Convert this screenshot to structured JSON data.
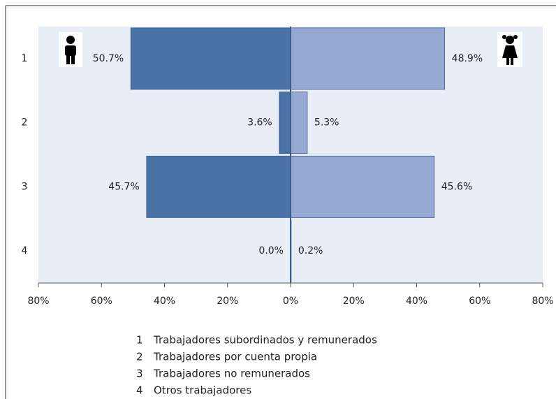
{
  "chart_data": {
    "type": "butterfly",
    "categories": [
      "1",
      "2",
      "3",
      "4"
    ],
    "series": [
      {
        "color": "#4a72a6",
        "values": [
          50.7,
          3.6,
          45.7,
          0.0
        ],
        "value_labels": [
          "50.7%",
          "3.6%",
          "45.7%",
          "0.0%"
        ]
      },
      {
        "color": "#95a9d2",
        "values": [
          48.9,
          5.3,
          45.6,
          0.2
        ],
        "value_labels": [
          "48.9%",
          "5.3%",
          "45.6%",
          "0.2%"
        ]
      }
    ],
    "xlim": [
      -80,
      80
    ],
    "xticks": [
      {
        "value": -80,
        "label": "80%"
      },
      {
        "value": -60,
        "label": "60%"
      },
      {
        "value": -40,
        "label": "40%"
      },
      {
        "value": -20,
        "label": "20%"
      },
      {
        "value": 0,
        "label": "0%"
      },
      {
        "value": 20,
        "label": "20%"
      },
      {
        "value": 40,
        "label": "40%"
      },
      {
        "value": 60,
        "label": "60%"
      },
      {
        "value": 80,
        "label": "80%"
      }
    ],
    "legend": [
      {
        "key": "1",
        "label": "Trabajadores subordinados y remunerados"
      },
      {
        "key": "2",
        "label": "Trabajadores por cuenta propia"
      },
      {
        "key": "3",
        "label": "Trabajadores no remunerados"
      },
      {
        "key": "4",
        "label": "Otros trabajadores"
      }
    ]
  }
}
